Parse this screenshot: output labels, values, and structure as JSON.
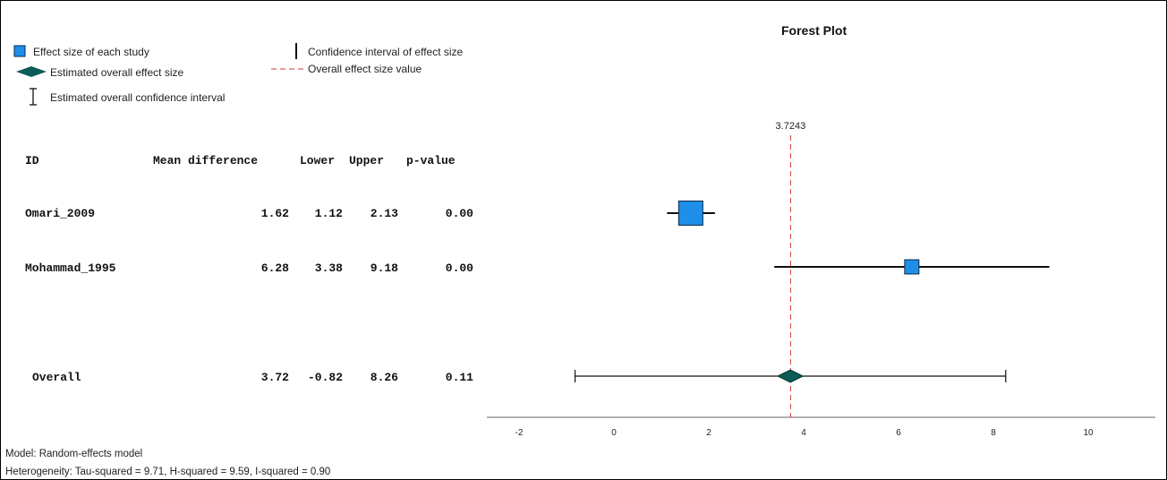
{
  "title": "Forest Plot",
  "legend": {
    "effect_size": "Effect size of each study",
    "overall_effect": "Estimated overall effect size",
    "overall_ci": "Estimated overall confidence interval",
    "ci": "Confidence interval of effect size",
    "overall_line": "Overall effect size value"
  },
  "table": {
    "headers": {
      "id": "ID",
      "mean_difference": "Mean difference",
      "lower": "Lower",
      "upper": "Upper",
      "p_value": "p-value"
    },
    "rows": [
      {
        "id": "Omari_2009",
        "mean": "1.62",
        "lower": "1.12",
        "upper": "2.13",
        "p": "0.00"
      },
      {
        "id": "Mohammad_1995",
        "mean": "6.28",
        "lower": "3.38",
        "upper": "9.18",
        "p": "0.00"
      }
    ],
    "overall": {
      "id": "Overall",
      "mean": "3.72",
      "lower": "-0.82",
      "upper": "8.26",
      "p": "0.11"
    }
  },
  "footer": {
    "model": "Model: Random-effects model",
    "heterogeneity": "Heterogeneity: Tau-squared = 9.71, H-squared = 9.59, I-squared = 0.90"
  },
  "colors": {
    "study_marker": "#1e8fe8",
    "overall_diamond": "#0b5c57",
    "reference_line": "#d63a3a",
    "axis": "#999999"
  },
  "chart_data": {
    "type": "forest",
    "title": "Forest Plot",
    "xlim": [
      -3,
      11
    ],
    "xticks": [
      "-2",
      "0",
      "2",
      "4",
      "6",
      "8",
      "10"
    ],
    "reference_value": 3.7243,
    "reference_label": "3.7243",
    "studies": [
      {
        "id": "Omari_2009",
        "effect": 1.62,
        "lower": 1.12,
        "upper": 2.13,
        "weight": 1.0
      },
      {
        "id": "Mohammad_1995",
        "effect": 6.28,
        "lower": 3.38,
        "upper": 9.18,
        "weight": 0.35
      }
    ],
    "overall": {
      "effect": 3.72,
      "lower": -0.82,
      "upper": 8.26
    }
  }
}
